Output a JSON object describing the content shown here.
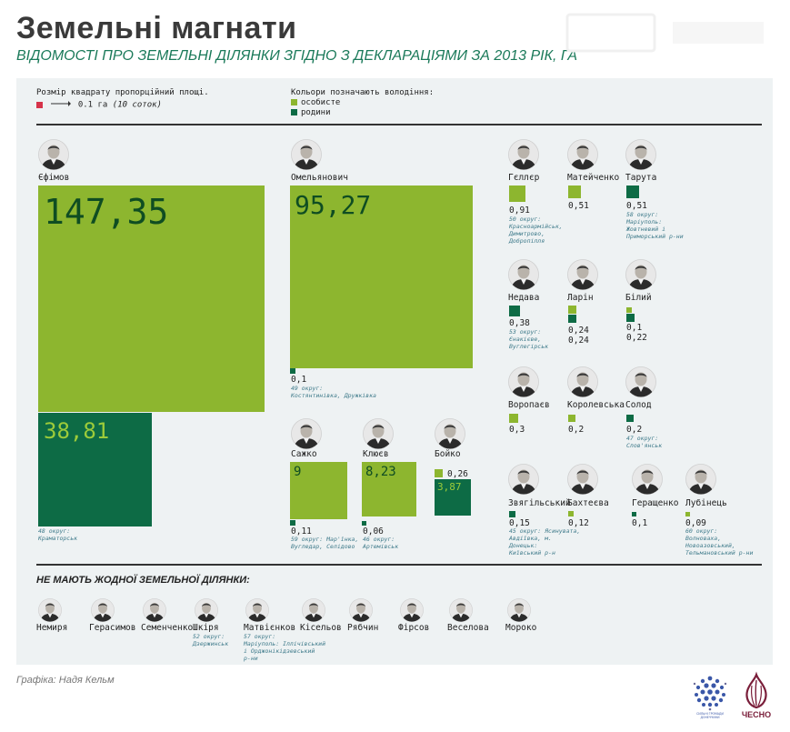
{
  "header": {
    "title": "Земельні магнати",
    "subtitle": "ВІДОМОСТІ ПРО ЗЕМЕЛЬНІ ДІЛЯНКИ ЗГІДНО З ДЕКЛАРАЦІЯМИ ЗА 2013 РІК, ГА"
  },
  "legend": {
    "size_label": "Розмір квадрату пропорційний площі.",
    "size_example": "0.1 га",
    "size_example_note": "(10 соток)",
    "color_label": "Кольори позначають володіння:",
    "personal": "особисте",
    "family": "родини"
  },
  "colors": {
    "personal": "#8db62f",
    "family": "#0d6b45",
    "unit": "#d6334a",
    "text_big_personal": "#0f4d22",
    "text_big_family": "#9ccb3a"
  },
  "chart_data": {
    "type": "area-squares",
    "unit": "га",
    "people": [
      {
        "name": "Єфімов",
        "personal": 147.35,
        "family": 38.81,
        "personal_label": "147,35",
        "family_label": "38,81",
        "okrug": "48 округ:\nКраматорськ"
      },
      {
        "name": "Омельянович",
        "personal": 95.27,
        "family": 0.1,
        "personal_label": "95,27",
        "family_label": "0,1",
        "okrug": "49 округ:\nКостянтинівка, Дружківка"
      },
      {
        "name": "Гєллєр",
        "personal": 0.91,
        "personal_label": "0,91",
        "okrug": "50 округ:\nКрасноармійськ,\nДимитрово,\nДобропілля"
      },
      {
        "name": "Матейченко",
        "personal": 0.51,
        "personal_label": "0,51",
        "okrug": ""
      },
      {
        "name": "Тарута",
        "family": 0.51,
        "family_label": "0,51",
        "okrug": "58 округ:\nМаріуполь:\nЖовтневий і\nПриморський р-ни"
      },
      {
        "name": "Недава",
        "family": 0.38,
        "family_label": "0,38",
        "okrug": "53 округ:\nЄнакієве,\nВуглегірськ"
      },
      {
        "name": "Ларін",
        "personal": 0.24,
        "family": 0.24,
        "personal_label": "0,24",
        "family_label": "0,24",
        "okrug": ""
      },
      {
        "name": "Білий",
        "personal": 0.1,
        "family": 0.22,
        "personal_label": "0,1",
        "family_label": "0,22",
        "okrug": ""
      },
      {
        "name": "Воропаєв",
        "personal": 0.3,
        "personal_label": "0,3",
        "okrug": ""
      },
      {
        "name": "Королевська",
        "personal": 0.2,
        "personal_label": "0,2",
        "okrug": ""
      },
      {
        "name": "Солод",
        "family": 0.2,
        "family_label": "0,2",
        "okrug": "47 округ:\nСлов'янськ"
      },
      {
        "name": "Сажко",
        "personal": 9,
        "family": 0.11,
        "personal_label": "9",
        "family_label": "0,11",
        "okrug": "59 округ: Мар'їнка,\nВугледар, Селідово"
      },
      {
        "name": "Клюєв",
        "personal": 8.23,
        "family": 0.06,
        "personal_label": "8,23",
        "family_label": "0,06",
        "okrug": "46 округ:\nАртемівськ"
      },
      {
        "name": "Бойко",
        "personal": 0.26,
        "family": 3.87,
        "personal_label": "0,26",
        "family_label": "3,87",
        "okrug": ""
      },
      {
        "name": "Звягільський",
        "family": 0.15,
        "family_label": "0,15",
        "okrug": "45 округ: Ясинувата,\nАвдіївка, м.\nДонецьк:\nКиївський р-н"
      },
      {
        "name": "Бахтеєва",
        "personal": 0.12,
        "personal_label": "0,12",
        "okrug": ""
      },
      {
        "name": "Геращенко",
        "family": 0.1,
        "family_label": "0,1",
        "okrug": ""
      },
      {
        "name": "Лубінець",
        "personal": 0.09,
        "personal_label": "0,09",
        "okrug": "60 округ:\nВолноваха,\nНовоазовський,\nТельмановський р-ни"
      }
    ]
  },
  "no_land": {
    "title": "НЕ МАЮТЬ ЖОДНОЇ ЗЕМЕЛЬНОЇ ДІЛЯНКИ:",
    "people": [
      {
        "name": "Немиря",
        "okrug": ""
      },
      {
        "name": "Герасимов",
        "okrug": ""
      },
      {
        "name": "Семенченко",
        "okrug": ""
      },
      {
        "name": "Шкіря",
        "okrug": "52 округ:\nДзержинськ"
      },
      {
        "name": "Матвієнков",
        "okrug": "57 округ:\nМаріуполь: Іллічівський\nі Орджонікідзевський\nр-ни"
      },
      {
        "name": "Кісельов",
        "okrug": ""
      },
      {
        "name": "Рябчин",
        "okrug": ""
      },
      {
        "name": "Фірсов",
        "okrug": ""
      },
      {
        "name": "Веселова",
        "okrug": ""
      },
      {
        "name": "Мороко",
        "okrug": ""
      }
    ]
  },
  "footer": {
    "credit": "Графіка: Надя Кельм",
    "logo1_text": "СИЛЬНІ ГРОМАДИ ДОНЕЧЧИНИ",
    "logo2_text": "ЧЕСНО"
  }
}
